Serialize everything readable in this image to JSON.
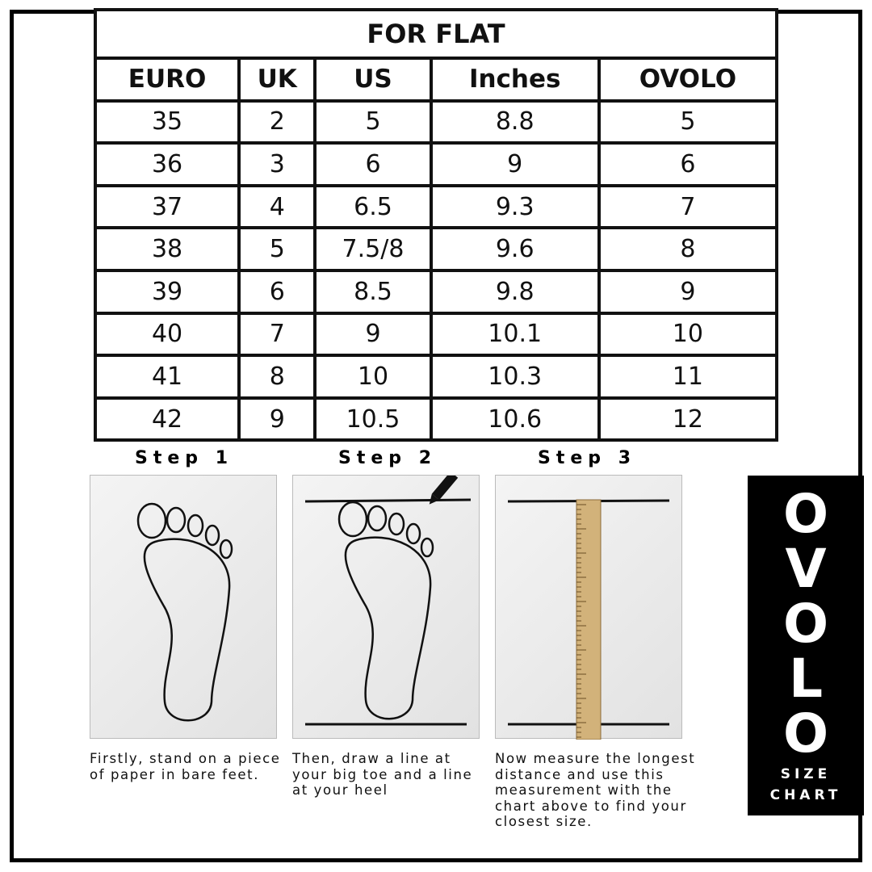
{
  "table": {
    "title": "FOR FLAT",
    "headers": [
      "EURO",
      "UK",
      "US",
      "Inches",
      "OVOLO"
    ],
    "rows": [
      [
        "35",
        "2",
        "5",
        "8.8",
        "5"
      ],
      [
        "36",
        "3",
        "6",
        "9",
        "6"
      ],
      [
        "37",
        "4",
        "6.5",
        "9.3",
        "7"
      ],
      [
        "38",
        "5",
        "7.5/8",
        "9.6",
        "8"
      ],
      [
        "39",
        "6",
        "8.5",
        "9.8",
        "9"
      ],
      [
        "40",
        "7",
        "9",
        "10.1",
        "10"
      ],
      [
        "41",
        "8",
        "10",
        "10.3",
        "11"
      ],
      [
        "42",
        "9",
        "10.5",
        "10.6",
        "12"
      ]
    ]
  },
  "steps": [
    {
      "label": "Step 1",
      "text": "Firstly, stand on a piece of paper in bare feet."
    },
    {
      "label": "Step 2",
      "text": "Then, draw a line at your big toe and a line at your heel"
    },
    {
      "label": "Step 3",
      "text": "Now measure the longest distance and use this measurement with the chart above to find your closest size."
    }
  ],
  "brand": {
    "letters": [
      "O",
      "V",
      "O",
      "L",
      "O"
    ],
    "line1": "SIZE",
    "line2": "CHART"
  }
}
